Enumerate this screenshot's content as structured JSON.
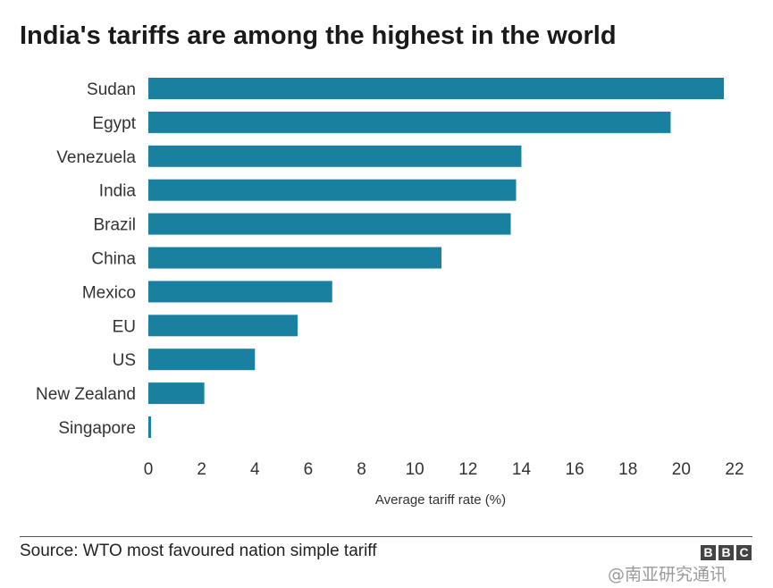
{
  "header": {
    "title": "India's tariffs are among the highest in the world"
  },
  "chart_data": {
    "type": "bar",
    "orientation": "horizontal",
    "title": "India's tariffs are among the highest in the world",
    "xlabel": "Average tariff rate (%)",
    "ylabel": "",
    "categories": [
      "Sudan",
      "Egypt",
      "Venezuela",
      "India",
      "Brazil",
      "China",
      "Mexico",
      "EU",
      "US",
      "New Zealand",
      "Singapore"
    ],
    "values": [
      21.6,
      19.6,
      14.0,
      13.8,
      13.6,
      11.0,
      6.9,
      5.6,
      4.0,
      2.1,
      0.1
    ],
    "xlim": [
      0,
      22
    ],
    "xticks": [
      0,
      2,
      4,
      6,
      8,
      10,
      12,
      14,
      16,
      18,
      20,
      22
    ],
    "grid": false,
    "bar_color": "#1a80a0"
  },
  "footer": {
    "source": "Source: WTO most favoured nation simple tariff",
    "logo_letters": [
      "B",
      "B",
      "C"
    ],
    "watermark": "@南亚研究通讯"
  }
}
